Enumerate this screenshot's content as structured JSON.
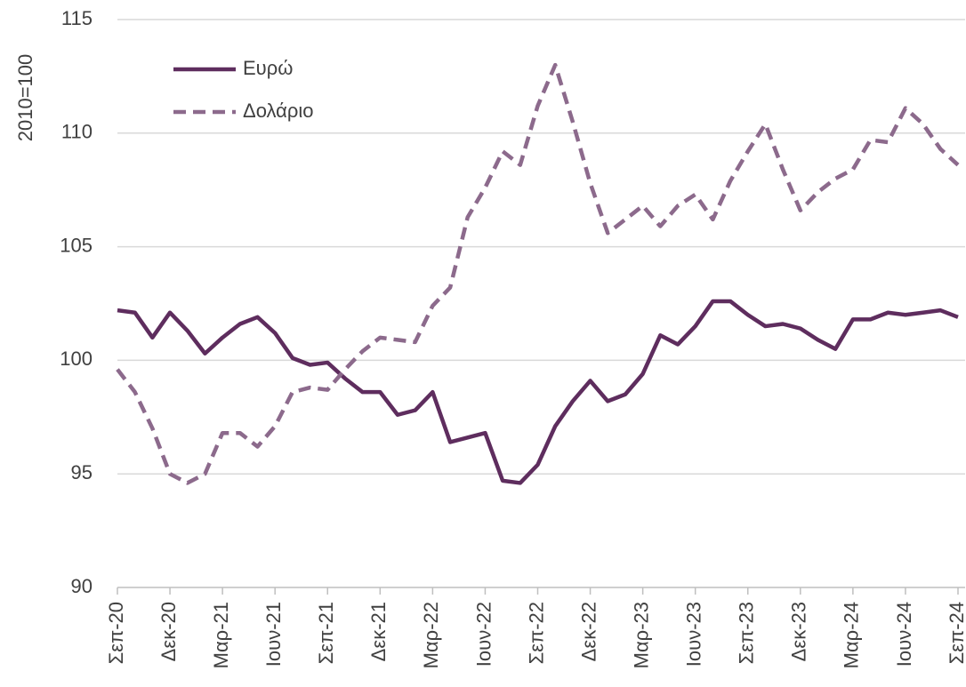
{
  "chart_data": {
    "type": "line",
    "y_label": "2010=100",
    "categories": [
      "Σεπ-20",
      null,
      null,
      "Δεκ-20",
      null,
      null,
      "Μαρ-21",
      null,
      null,
      "Ιουν-21",
      null,
      null,
      "Σεπ-21",
      null,
      null,
      "Δεκ-21",
      null,
      null,
      "Μαρ-22",
      null,
      null,
      "Ιουν-22",
      null,
      null,
      "Σεπ-22",
      null,
      null,
      "Δεκ-22",
      null,
      null,
      "Μαρ-23",
      null,
      null,
      "Ιουν-23",
      null,
      null,
      "Σεπ-23",
      null,
      null,
      "Δεκ-23",
      null,
      null,
      "Μαρ-24",
      null,
      null,
      "Ιουν-24",
      null,
      null,
      "Σεπ-24"
    ],
    "series": [
      {
        "name": "Ευρώ",
        "color": "#5e2d5e",
        "dashed": false,
        "values": [
          102.2,
          102.1,
          101.0,
          102.1,
          101.3,
          100.3,
          101.0,
          101.6,
          101.9,
          101.2,
          100.1,
          99.8,
          99.9,
          99.2,
          98.6,
          98.6,
          97.6,
          97.8,
          98.6,
          96.4,
          96.6,
          96.8,
          94.7,
          94.6,
          95.4,
          97.1,
          98.2,
          99.1,
          98.2,
          98.5,
          99.4,
          101.1,
          100.7,
          101.5,
          102.6,
          102.6,
          102.0,
          101.5,
          101.6,
          101.4,
          100.9,
          100.5,
          101.8,
          101.8,
          102.1,
          102.0,
          102.1,
          102.2,
          101.9
        ]
      },
      {
        "name": "Δολάριο",
        "color": "#8c6a8c",
        "dashed": true,
        "values": [
          99.6,
          98.6,
          97.0,
          95.0,
          94.6,
          95.0,
          96.8,
          96.8,
          96.2,
          97.1,
          98.6,
          98.8,
          98.7,
          99.6,
          100.4,
          101.0,
          100.9,
          100.8,
          102.4,
          103.2,
          106.3,
          107.6,
          109.2,
          108.6,
          111.2,
          113.0,
          110.5,
          107.8,
          105.6,
          106.2,
          106.8,
          105.9,
          106.8,
          107.3,
          106.2,
          107.9,
          109.2,
          110.4,
          108.4,
          106.6,
          107.4,
          108.0,
          108.4,
          109.7,
          109.6,
          111.1,
          110.4,
          109.3,
          108.6
        ]
      }
    ],
    "ylim": [
      90,
      115
    ],
    "yticks": [
      90,
      95,
      100,
      105,
      110,
      115
    ],
    "grid": true,
    "legend": "top-left"
  }
}
